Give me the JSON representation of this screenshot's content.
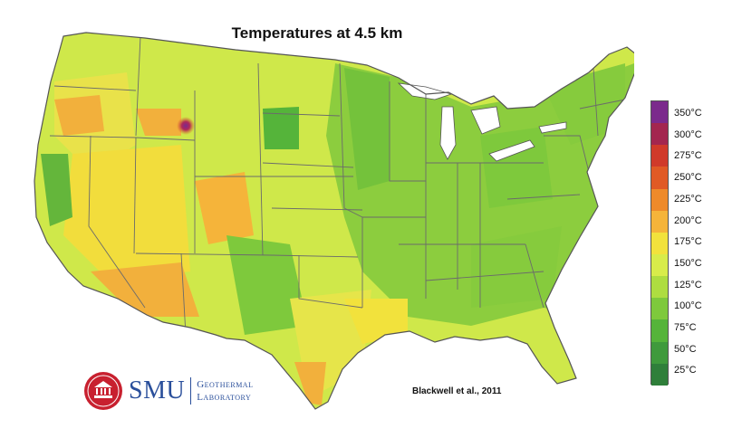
{
  "title": "Temperatures at 4.5 km",
  "citation": "Blackwell et al., 2011",
  "logo": {
    "name": "SMU",
    "line1": "Geothermal",
    "line2": "Laboratory"
  },
  "legend": {
    "labels": [
      "350°C",
      "300°C",
      "275°C",
      "250°C",
      "225°C",
      "200°C",
      "175°C",
      "150°C",
      "125°C",
      "100°C",
      "75°C",
      "50°C",
      "25°C"
    ],
    "colors": [
      "#7b2a8c",
      "#a3264f",
      "#d03a2a",
      "#e05a25",
      "#ee8a2a",
      "#f5b43a",
      "#f2e23c",
      "#d8ec4a",
      "#aedd40",
      "#7ec93c",
      "#55b43a",
      "#3f9a3c",
      "#2f7f3a"
    ]
  },
  "colors": {
    "state_border": "#6b6b6b",
    "water": "#ffffff",
    "outline": "#555555"
  }
}
